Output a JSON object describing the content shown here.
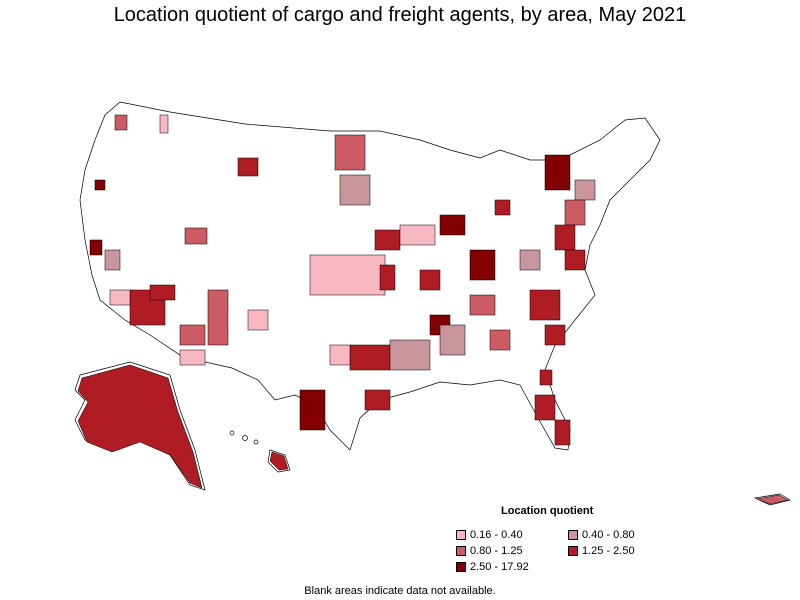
{
  "title": "Location quotient of cargo and freight agents, by area, May 2021",
  "legend": {
    "title": "Location quotient",
    "items": [
      {
        "label": "0.16 - 0.40",
        "color": "#f8b8c3"
      },
      {
        "label": "0.40 - 0.80",
        "color": "#c9969d"
      },
      {
        "label": "0.80 - 1.25",
        "color": "#cc5b64"
      },
      {
        "label": "1.25 - 2.50",
        "color": "#b01c24"
      },
      {
        "label": "2.50 - 17.92",
        "color": "#820000"
      }
    ]
  },
  "footnote": "Blank areas indicate data not available.",
  "colors": {
    "border": "#000000",
    "no_data": "#ffffff"
  }
}
